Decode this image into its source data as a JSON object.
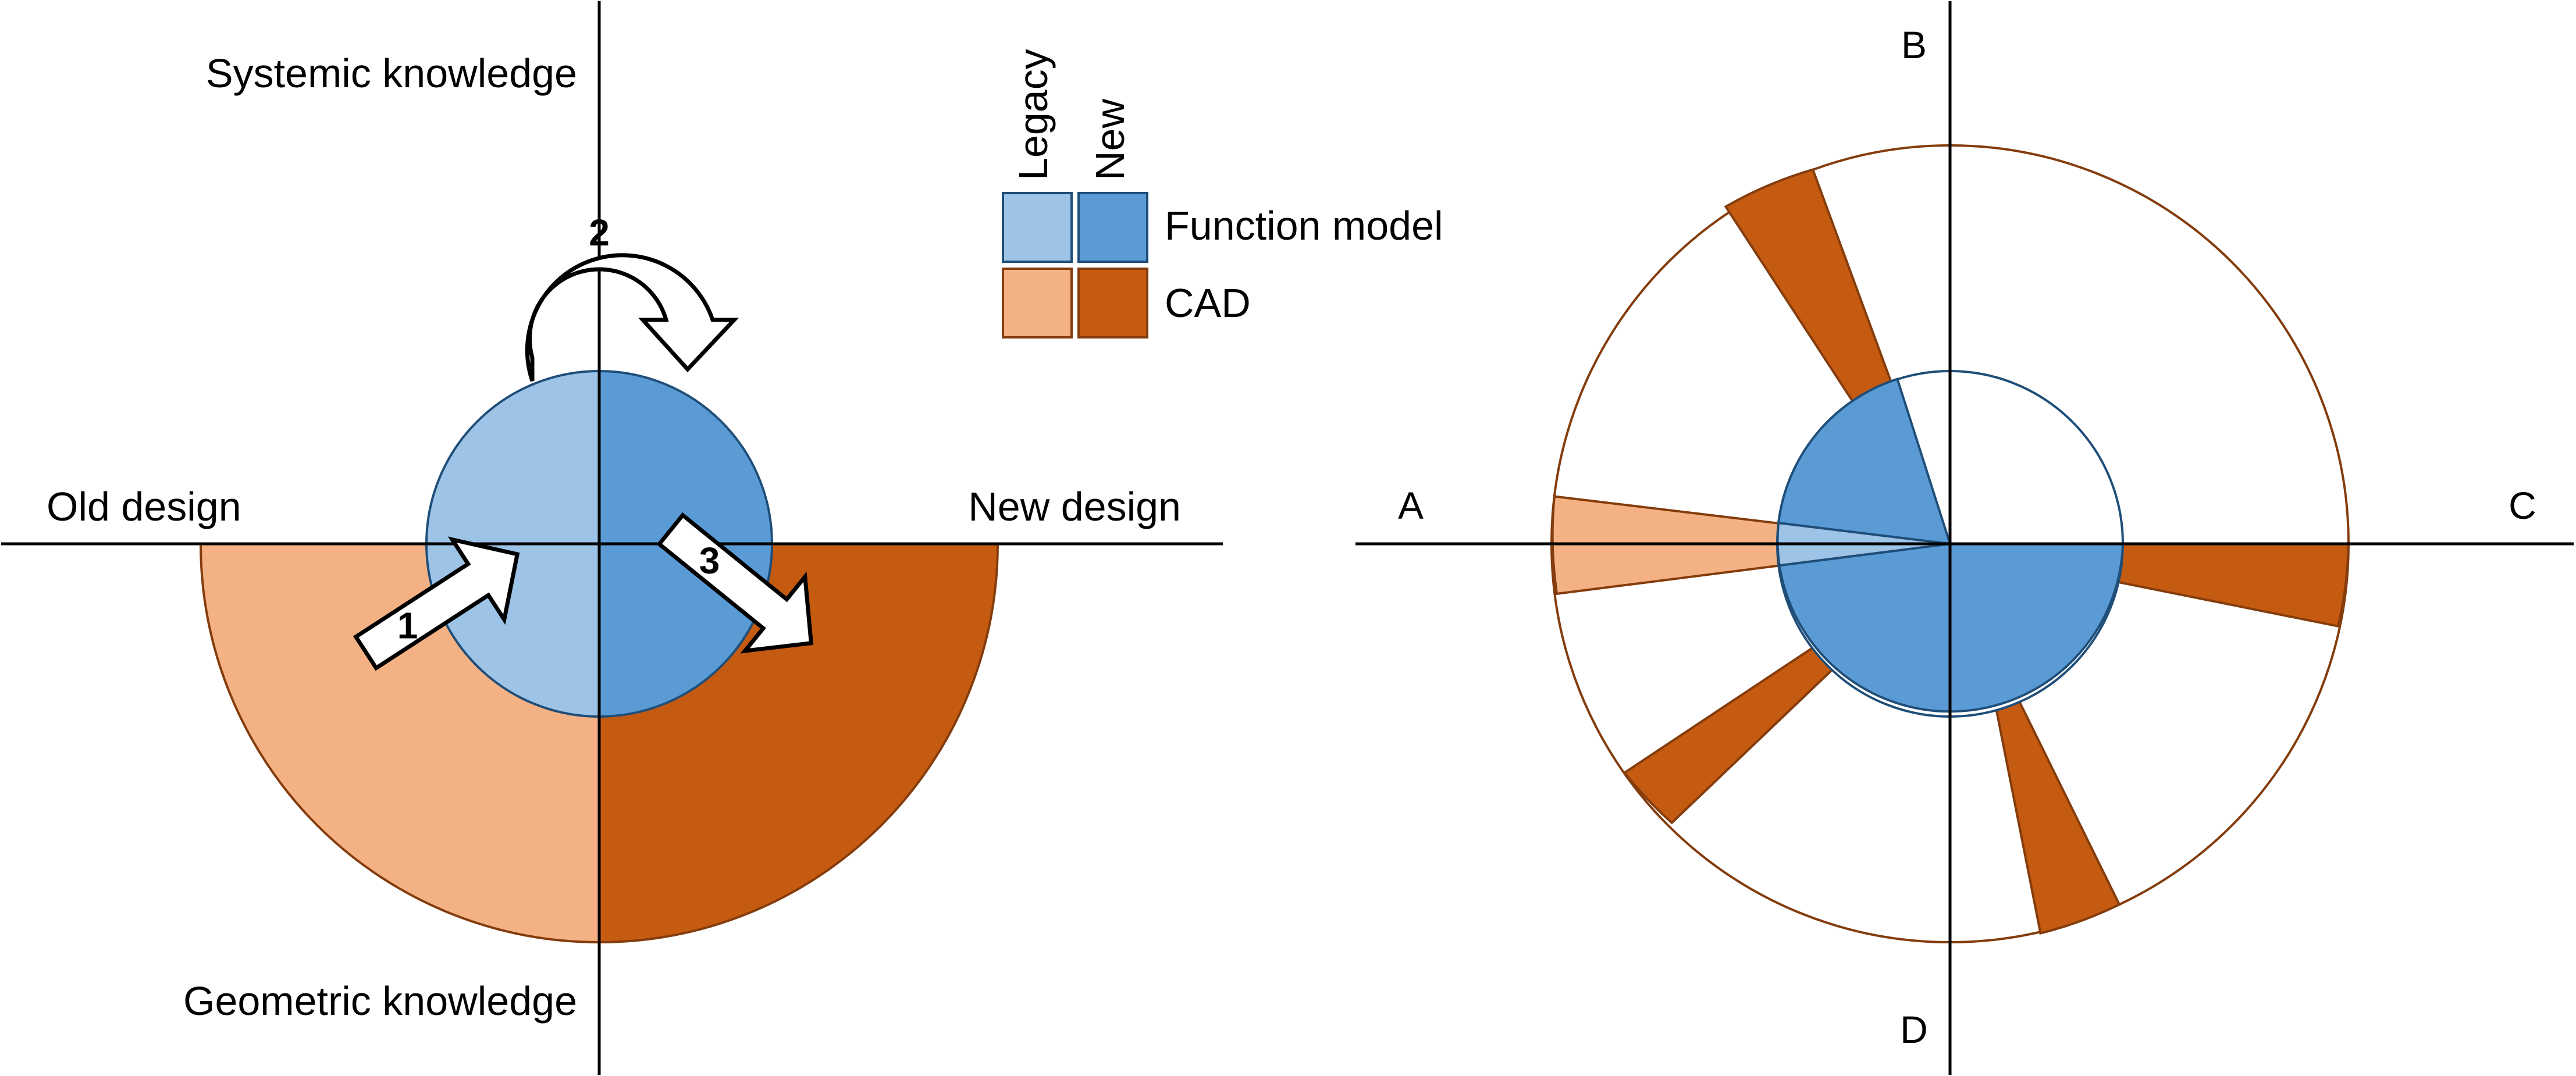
{
  "left_diagram": {
    "axes": {
      "top": "Systemic knowledge",
      "bottom": "Geometric knowledge",
      "left": "Old design",
      "right": "New design"
    },
    "steps": [
      "1",
      "2",
      "3"
    ]
  },
  "legend": {
    "columns": [
      "Legacy",
      "New"
    ],
    "rows": [
      "Function model",
      "CAD"
    ]
  },
  "right_diagram": {
    "axes": {
      "left": "A",
      "top": "B",
      "right": "C",
      "bottom": "D"
    }
  },
  "colors": {
    "legacy_function": "#9dc3e6",
    "new_function": "#5b9bd5",
    "legacy_cad": "#f4b183",
    "new_cad": "#c55a11",
    "function_stroke": "#1f4e79",
    "cad_stroke": "#843c0c"
  }
}
